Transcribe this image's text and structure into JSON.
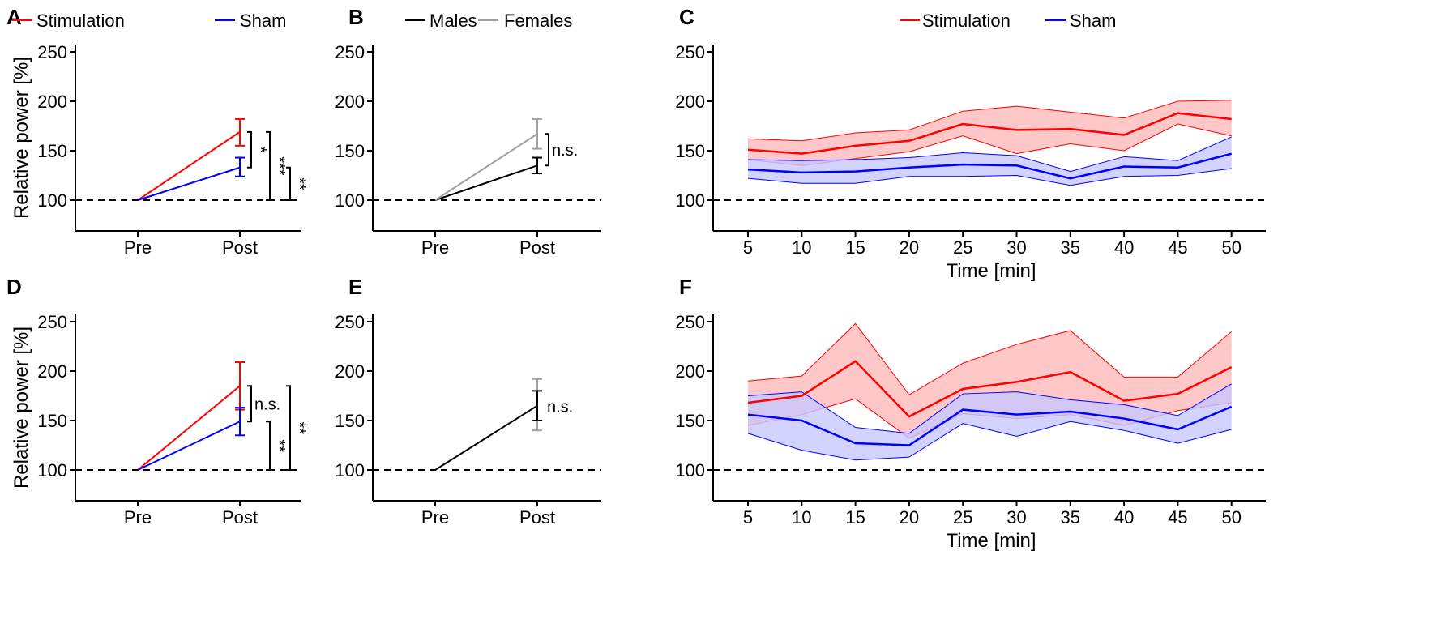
{
  "colors": {
    "stimulation": "#ff0000",
    "sham": "#0000ff",
    "males": "#000000",
    "females": "#a0a0a0",
    "stim_fill": "#ffc8c8",
    "sham_fill": "#c8c8ff"
  },
  "chart_data": [
    {
      "panel": "A",
      "type": "line",
      "ylabel": "Relative power [%]",
      "ylim": [
        75,
        260
      ],
      "yticks": [
        100,
        150,
        200,
        250
      ],
      "categories": [
        "Pre",
        "Post"
      ],
      "reference_line": 100,
      "legend": [
        "Stimulation",
        "Sham"
      ],
      "series": [
        {
          "name": "Stimulation",
          "color": "#ff0000",
          "values": [
            100,
            169
          ],
          "err_low": [
            null,
            155
          ],
          "err_high": [
            null,
            182
          ]
        },
        {
          "name": "Sham",
          "color": "#0000ff",
          "values": [
            100,
            133
          ],
          "err_low": [
            null,
            124
          ],
          "err_high": [
            null,
            143
          ]
        }
      ],
      "annotations": [
        {
          "from": 169,
          "to": 133,
          "label": "*"
        },
        {
          "from": 169,
          "to": 100,
          "label": "***"
        },
        {
          "from": 133,
          "to": 100,
          "label": "**"
        }
      ]
    },
    {
      "panel": "B",
      "type": "line",
      "ylim": [
        75,
        260
      ],
      "yticks": [
        100,
        150,
        200,
        250
      ],
      "categories": [
        "Pre",
        "Post"
      ],
      "reference_line": 100,
      "legend": [
        "Males",
        "Females"
      ],
      "series": [
        {
          "name": "Males",
          "color": "#000000",
          "values": [
            100,
            135
          ],
          "err_low": [
            null,
            127
          ],
          "err_high": [
            null,
            143
          ]
        },
        {
          "name": "Females",
          "color": "#a0a0a0",
          "values": [
            100,
            167
          ],
          "err_low": [
            null,
            152
          ],
          "err_high": [
            null,
            182
          ]
        }
      ],
      "annotations": [
        {
          "from": 167,
          "to": 135,
          "label": "n.s."
        }
      ]
    },
    {
      "panel": "C",
      "type": "area",
      "xlabel": "Time [min]",
      "ylim": [
        75,
        260
      ],
      "yticks": [
        100,
        150,
        200,
        250
      ],
      "x": [
        5,
        10,
        15,
        20,
        25,
        30,
        35,
        40,
        45,
        50
      ],
      "reference_line": 100,
      "legend": [
        "Stimulation",
        "Sham"
      ],
      "series": [
        {
          "name": "Stimulation",
          "color": "#ff0000",
          "values": [
            151,
            147,
            155,
            160,
            177,
            171,
            172,
            166,
            188,
            182
          ],
          "upper": [
            162,
            160,
            168,
            171,
            190,
            195,
            189,
            183,
            200,
            201
          ],
          "lower": [
            141,
            135,
            142,
            149,
            165,
            147,
            157,
            150,
            177,
            165
          ]
        },
        {
          "name": "Sham",
          "color": "#0000ff",
          "values": [
            131,
            128,
            129,
            133,
            136,
            135,
            122,
            134,
            133,
            147
          ],
          "upper": [
            141,
            140,
            141,
            143,
            148,
            145,
            129,
            144,
            140,
            164
          ],
          "lower": [
            122,
            117,
            117,
            124,
            124,
            125,
            115,
            124,
            125,
            132
          ]
        }
      ]
    },
    {
      "panel": "D",
      "type": "line",
      "ylabel": "Relative power [%]",
      "ylim": [
        75,
        260
      ],
      "yticks": [
        100,
        150,
        200,
        250
      ],
      "categories": [
        "Pre",
        "Post"
      ],
      "reference_line": 100,
      "series": [
        {
          "name": "Stimulation",
          "color": "#ff0000",
          "values": [
            100,
            185
          ],
          "err_low": [
            null,
            161
          ],
          "err_high": [
            null,
            209
          ]
        },
        {
          "name": "Sham",
          "color": "#0000ff",
          "values": [
            100,
            149
          ],
          "err_low": [
            null,
            135
          ],
          "err_high": [
            null,
            163
          ]
        }
      ],
      "annotations": [
        {
          "from": 185,
          "to": 149,
          "label": "n.s."
        },
        {
          "from": 149,
          "to": 100,
          "label": "**"
        },
        {
          "from": 185,
          "to": 100,
          "label": "**"
        }
      ]
    },
    {
      "panel": "E",
      "type": "line",
      "ylim": [
        75,
        260
      ],
      "yticks": [
        100,
        150,
        200,
        250
      ],
      "categories": [
        "Pre",
        "Post"
      ],
      "reference_line": 100,
      "series": [
        {
          "name": "Females",
          "color": "#a0a0a0",
          "values": [
            null,
            166
          ],
          "err_low": [
            null,
            140
          ],
          "err_high": [
            null,
            192
          ]
        },
        {
          "name": "Males",
          "color": "#000000",
          "values": [
            100,
            165
          ],
          "err_low": [
            null,
            150
          ],
          "err_high": [
            null,
            180
          ]
        }
      ],
      "annotations": [
        {
          "label": "n.s.",
          "at": 165
        }
      ]
    },
    {
      "panel": "F",
      "type": "area",
      "xlabel": "Time [min]",
      "ylim": [
        75,
        260
      ],
      "yticks": [
        100,
        150,
        200,
        250
      ],
      "x": [
        5,
        10,
        15,
        20,
        25,
        30,
        35,
        40,
        45,
        50
      ],
      "reference_line": 100,
      "series": [
        {
          "name": "Stimulation",
          "color": "#ff0000",
          "values": [
            168,
            175,
            210,
            154,
            182,
            189,
            199,
            170,
            177,
            204
          ],
          "upper": [
            190,
            195,
            248,
            176,
            208,
            227,
            241,
            194,
            194,
            240
          ],
          "lower": [
            145,
            156,
            172,
            132,
            157,
            152,
            156,
            145,
            160,
            168
          ]
        },
        {
          "name": "Sham",
          "color": "#0000ff",
          "values": [
            156,
            150,
            127,
            125,
            161,
            156,
            159,
            152,
            141,
            164
          ],
          "upper": [
            175,
            179,
            143,
            137,
            177,
            179,
            171,
            166,
            155,
            187
          ],
          "lower": [
            137,
            120,
            110,
            113,
            147,
            134,
            149,
            140,
            127,
            141
          ]
        }
      ]
    }
  ]
}
